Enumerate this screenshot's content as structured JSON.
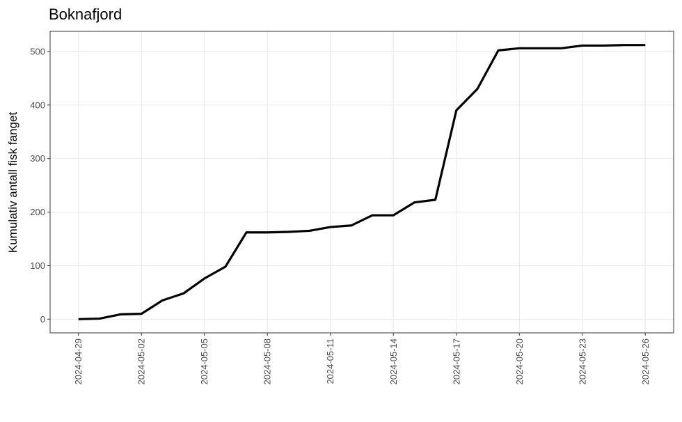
{
  "chart_data": {
    "type": "line",
    "title": "Boknafjord",
    "y_label": "Kumulativ antall fisk fanget",
    "x": [
      "2024-04-29",
      "2024-04-30",
      "2024-05-01",
      "2024-05-02",
      "2024-05-03",
      "2024-05-04",
      "2024-05-05",
      "2024-05-06",
      "2024-05-07",
      "2024-05-08",
      "2024-05-09",
      "2024-05-10",
      "2024-05-11",
      "2024-05-12",
      "2024-05-13",
      "2024-05-14",
      "2024-05-15",
      "2024-05-16",
      "2024-05-17",
      "2024-05-18",
      "2024-05-19",
      "2024-05-20",
      "2024-05-21",
      "2024-05-22",
      "2024-05-23",
      "2024-05-24",
      "2024-05-25",
      "2024-05-26"
    ],
    "values": [
      0,
      1,
      9,
      10,
      35,
      48,
      76,
      98,
      162,
      162,
      163,
      165,
      172,
      175,
      194,
      194,
      218,
      223,
      390,
      430,
      502,
      506,
      506,
      506,
      511,
      511,
      512,
      512
    ],
    "color": "#000000",
    "xticks": [
      "2024-04-29",
      "2024-05-02",
      "2024-05-05",
      "2024-05-08",
      "2024-05-11",
      "2024-05-14",
      "2024-05-17",
      "2024-05-20",
      "2024-05-23",
      "2024-05-26"
    ],
    "ylim": [
      -25.6,
      537.6
    ],
    "yticks": [
      0,
      100,
      200,
      300,
      400,
      500
    ],
    "grid": true
  }
}
